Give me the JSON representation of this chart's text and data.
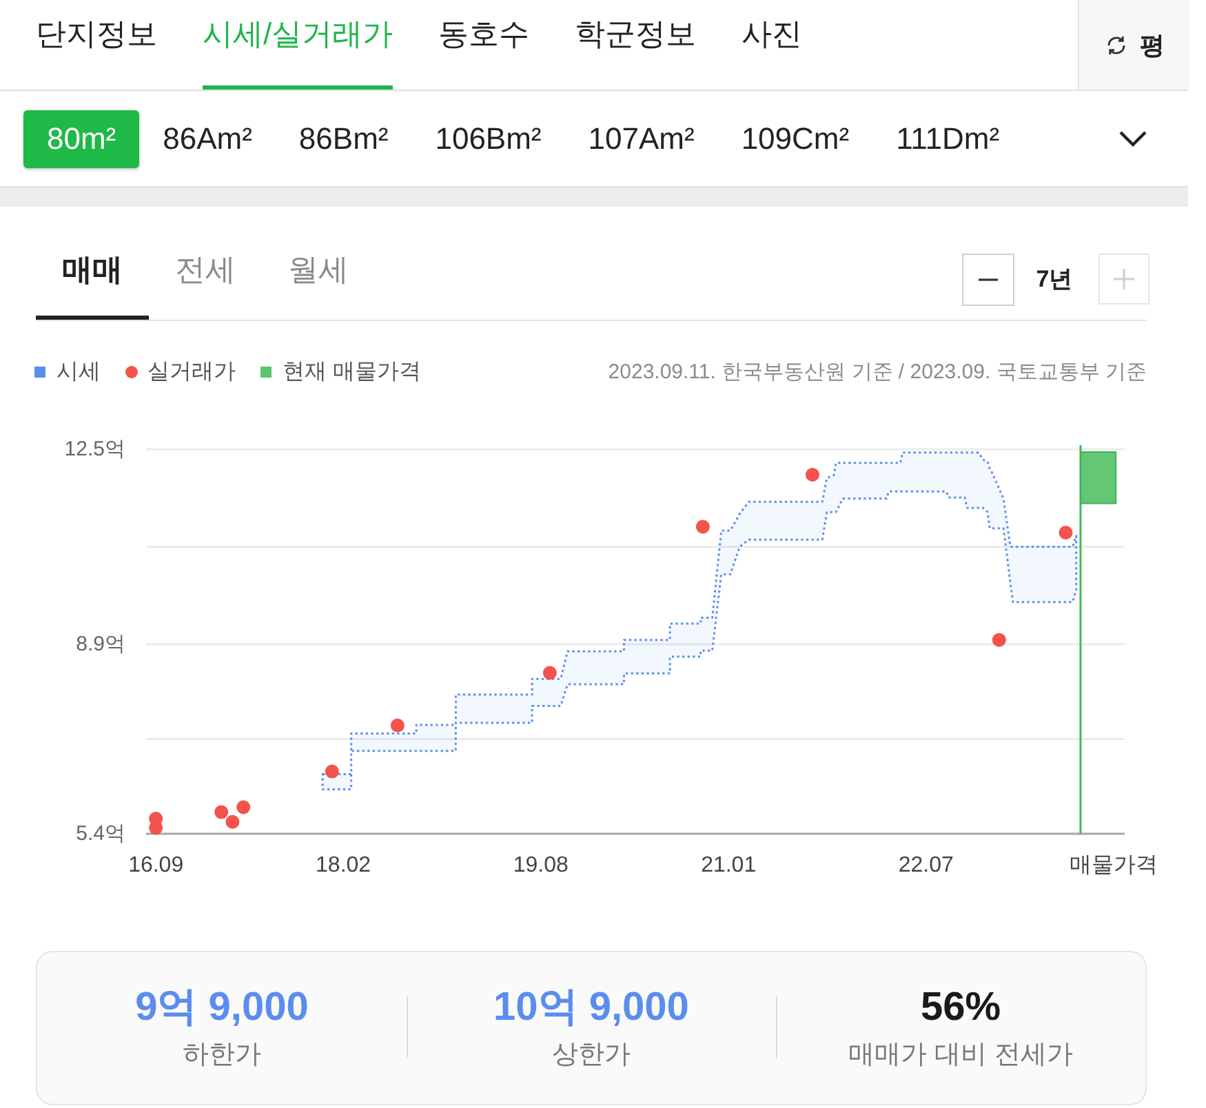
{
  "chart_data": [
    {
      "type": "other",
      "annotations": [
        "단지정보",
        "시세/실거래가",
        "동호수",
        "학군정보",
        "사진",
        "평"
      ]
    },
    {
      "type": "other",
      "annotations": [
        "80m²",
        "86Am²",
        "86Bm²",
        "106Bm²",
        "107Am²",
        "109Cm²",
        "111Dm²"
      ]
    },
    {
      "type": "other",
      "annotations": [
        "매매",
        "전세",
        "월세",
        "7년"
      ]
    },
    {
      "type": "scatter",
      "legend": "top left",
      "grid": "y",
      "xlim": [
        "2016-08-05",
        "2024-01-01"
      ],
      "xticks": [
        {
          "value": "2016-09",
          "label": "16.09"
        },
        {
          "value": "2018-02",
          "label": "18.02"
        },
        {
          "value": "2019-08",
          "label": "19.08"
        },
        {
          "value": "2021-01",
          "label": "21.01"
        },
        {
          "value": "2022-07",
          "label": "22.07"
        },
        {
          "value": "2023-12",
          "label": "매물가격"
        }
      ],
      "ylim": [
        5.4,
        12.5
      ],
      "yticks": [
        {
          "value": 5.4,
          "label": "5.4억"
        },
        {
          "value": 7.15,
          "label": null
        },
        {
          "value": 8.9,
          "label": "8.9억"
        },
        {
          "value": 10.7,
          "label": null
        },
        {
          "value": 12.5,
          "label": "12.5억"
        }
      ],
      "ref_lines": [
        {
          "axis": "x",
          "value": "2023-09-01",
          "color": "#3dbd57"
        }
      ],
      "annotations": [
        "2023.09.11. 한국부동산원 기준 / 2023.09. 국토교통부 기준"
      ],
      "series": [
        {
          "name": "시세",
          "type": "area",
          "color": "#5b8def",
          "line_style": "dotted",
          "x": [
            "2017-12-06",
            "2018-02-23",
            "2018-02-23",
            "2018-08-22",
            "2018-08-22",
            "2018-12-09",
            "2018-12-09",
            "2019-07-08",
            "2019-07-08",
            "2019-09-25",
            "2019-10-14",
            "2020-03-18",
            "2020-03-18",
            "2020-07-23",
            "2020-07-23",
            "2020-10-16",
            "2020-10-16",
            "2020-11-17",
            "2020-12-12",
            "2021-01-06",
            "2021-02-01",
            "2021-02-26",
            "2021-09-17",
            "2021-09-30",
            "2021-10-19",
            "2021-10-25",
            "2021-11-13",
            "2022-03-14",
            "2022-03-20",
            "2022-04-21",
            "2022-04-27",
            "2022-08-26",
            "2022-09-01",
            "2022-10-16",
            "2022-10-22",
            "2022-11-23",
            "2022-12-05",
            "2022-12-18",
            "2022-12-24",
            "2022-12-31",
            "2023-01-31",
            "2023-02-19",
            "2023-02-26",
            "2023-08-10",
            "2023-08-20"
          ],
          "values": [
            null,
            null,
            null,
            null,
            null,
            null,
            null,
            null,
            null,
            null,
            null,
            null,
            null,
            null,
            null,
            null,
            null,
            null,
            null,
            null,
            null,
            null,
            null,
            null,
            null,
            null,
            null,
            null,
            null,
            null,
            null,
            null,
            null,
            null,
            null,
            null,
            null,
            null,
            null,
            null,
            null,
            null,
            null,
            null,
            null
          ],
          "upper": [
            6.5,
            6.5,
            7.25,
            7.25,
            7.41,
            7.41,
            7.97,
            7.97,
            8.26,
            8.26,
            8.77,
            8.77,
            8.98,
            8.98,
            9.28,
            9.28,
            9.39,
            9.39,
            11.0,
            11.0,
            11.31,
            11.53,
            11.53,
            11.97,
            12.02,
            12.25,
            12.25,
            12.25,
            12.25,
            12.25,
            12.44,
            12.44,
            12.44,
            12.44,
            12.44,
            12.44,
            12.31,
            12.27,
            12.14,
            12.06,
            11.59,
            10.7,
            10.7,
            10.7,
            10.9
          ],
          "lower": [
            6.22,
            6.22,
            6.93,
            6.93,
            6.93,
            6.93,
            7.45,
            7.45,
            7.76,
            7.76,
            8.16,
            8.16,
            8.36,
            8.36,
            8.67,
            8.67,
            8.78,
            8.78,
            10.19,
            10.19,
            10.7,
            10.83,
            10.83,
            11.34,
            11.34,
            11.34,
            11.59,
            11.59,
            11.72,
            11.72,
            11.72,
            11.72,
            11.61,
            11.61,
            11.42,
            11.42,
            11.42,
            11.34,
            11.04,
            11.04,
            11.04,
            10.03,
            9.68,
            9.68,
            9.9
          ]
        },
        {
          "name": "실거래가",
          "type": "scatter",
          "color": "#f4524d",
          "marker": "circle",
          "x": [
            "2016-09",
            "2016-09",
            "2017-03",
            "2017-04",
            "2017-05",
            "2018-01",
            "2018-07",
            "2019-08-26",
            "2020-10-22",
            "2021-08-21",
            "2023-01-19",
            "2023-07-22"
          ],
          "values": [
            5.68,
            5.51,
            5.8,
            5.62,
            5.89,
            6.55,
            7.4,
            8.37,
            11.07,
            12.03,
            8.98,
            10.96
          ]
        },
        {
          "name": "현재 매물가격",
          "type": "bar",
          "color": "#5cc46e",
          "x": [
            "2023-10-20"
          ],
          "base": [
            11.5
          ],
          "values": [
            0.95
          ]
        }
      ]
    },
    {
      "type": "other",
      "annotations": [
        "9억 9,000",
        "하한가",
        "10억 9,000",
        "상한가",
        "56%",
        "매매가 대비 전세가"
      ]
    }
  ]
}
